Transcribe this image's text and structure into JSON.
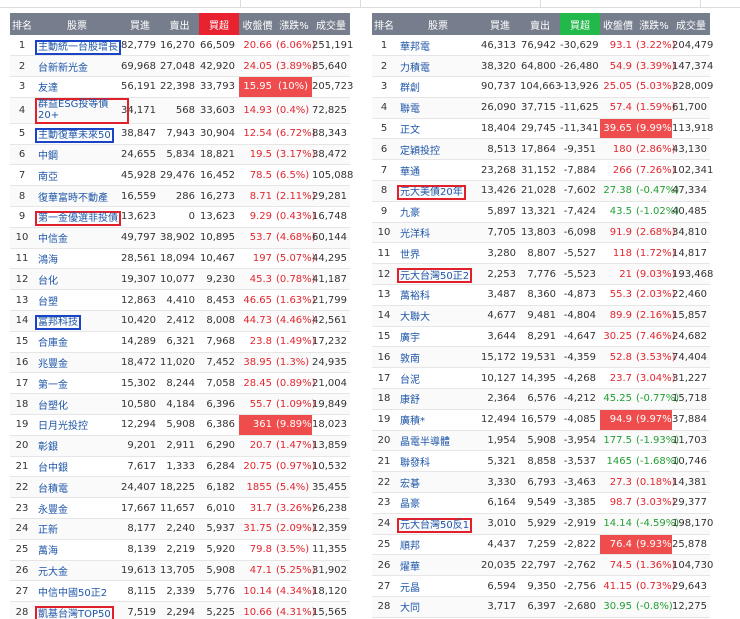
{
  "headers": [
    "排名",
    "股票",
    "買進",
    "賣出",
    "買超",
    "收盤價",
    "漲跌%",
    "成交量"
  ],
  "left_rows": [
    {
      "rank": "1",
      "name": "主動統一台股增長",
      "buy": "82,779",
      "sell": "16,270",
      "net": "66,509",
      "close": "20.66",
      "chg": "(6.06%)",
      "vol": "251,191",
      "box": "blue"
    },
    {
      "rank": "2",
      "name": "台新新光金",
      "buy": "69,968",
      "sell": "27,048",
      "net": "42,920",
      "close": "24.05",
      "chg": "(3.89%)",
      "vol": "85,640"
    },
    {
      "rank": "3",
      "name": "友達",
      "buy": "56,191",
      "sell": "22,398",
      "net": "33,793",
      "close": "15.95",
      "chg": "(10%)",
      "vol": "205,723",
      "limit": true
    },
    {
      "rank": "4",
      "name": "群益ESG投等債20+",
      "buy": "34,171",
      "sell": "568",
      "net": "33,603",
      "close": "14.93",
      "chg": "(0.4%)",
      "vol": "72,825",
      "box": "red",
      "wrap": true
    },
    {
      "rank": "5",
      "name": "主動復華未來50",
      "buy": "38,847",
      "sell": "7,943",
      "net": "30,904",
      "close": "12.54",
      "chg": "(6.72%)",
      "vol": "88,343",
      "box": "blue"
    },
    {
      "rank": "6",
      "name": "中鋼",
      "buy": "24,655",
      "sell": "5,834",
      "net": "18,821",
      "close": "19.5",
      "chg": "(3.17%)",
      "vol": "38,472"
    },
    {
      "rank": "7",
      "name": "南亞",
      "buy": "45,928",
      "sell": "29,476",
      "net": "16,452",
      "close": "78.5",
      "chg": "(6.5%)",
      "vol": "105,088"
    },
    {
      "rank": "8",
      "name": "復華富時不動產",
      "buy": "16,559",
      "sell": "286",
      "net": "16,273",
      "close": "8.71",
      "chg": "(2.11%)",
      "vol": "29,281"
    },
    {
      "rank": "9",
      "name": "第一金優選非投債",
      "buy": "13,623",
      "sell": "0",
      "net": "13,623",
      "close": "9.29",
      "chg": "(0.43%)",
      "vol": "16,748",
      "box": "red"
    },
    {
      "rank": "10",
      "name": "中信金",
      "buy": "49,797",
      "sell": "38,902",
      "net": "10,895",
      "close": "53.7",
      "chg": "(4.68%)",
      "vol": "60,144"
    },
    {
      "rank": "11",
      "name": "鴻海",
      "buy": "28,561",
      "sell": "18,094",
      "net": "10,467",
      "close": "197",
      "chg": "(5.07%)",
      "vol": "44,295"
    },
    {
      "rank": "12",
      "name": "台化",
      "buy": "19,307",
      "sell": "10,077",
      "net": "9,230",
      "close": "45.3",
      "chg": "(0.78%)",
      "vol": "41,187"
    },
    {
      "rank": "13",
      "name": "台塑",
      "buy": "12,863",
      "sell": "4,410",
      "net": "8,453",
      "close": "46.65",
      "chg": "(1.63%)",
      "vol": "21,799"
    },
    {
      "rank": "14",
      "name": "富邦科技",
      "buy": "10,420",
      "sell": "2,412",
      "net": "8,008",
      "close": "44.73",
      "chg": "(4.46%)",
      "vol": "42,561",
      "box": "blue"
    },
    {
      "rank": "15",
      "name": "合庫金",
      "buy": "14,289",
      "sell": "6,321",
      "net": "7,968",
      "close": "23.8",
      "chg": "(1.49%)",
      "vol": "17,232"
    },
    {
      "rank": "16",
      "name": "兆豐金",
      "buy": "18,472",
      "sell": "11,020",
      "net": "7,452",
      "close": "38.95",
      "chg": "(1.3%)",
      "vol": "24,935"
    },
    {
      "rank": "17",
      "name": "第一金",
      "buy": "15,302",
      "sell": "8,244",
      "net": "7,058",
      "close": "28.45",
      "chg": "(0.89%)",
      "vol": "21,004"
    },
    {
      "rank": "18",
      "name": "台塑化",
      "buy": "10,580",
      "sell": "4,184",
      "net": "6,396",
      "close": "55.7",
      "chg": "(1.09%)",
      "vol": "19,849"
    },
    {
      "rank": "19",
      "name": "日月光投控",
      "buy": "12,294",
      "sell": "5,908",
      "net": "6,386",
      "close": "361",
      "chg": "(9.89%)",
      "vol": "18,023",
      "limit": true
    },
    {
      "rank": "20",
      "name": "彰銀",
      "buy": "9,201",
      "sell": "2,911",
      "net": "6,290",
      "close": "20.7",
      "chg": "(1.47%)",
      "vol": "13,859"
    },
    {
      "rank": "21",
      "name": "台中銀",
      "buy": "7,617",
      "sell": "1,333",
      "net": "6,284",
      "close": "20.75",
      "chg": "(0.97%)",
      "vol": "10,532"
    },
    {
      "rank": "22",
      "name": "台積電",
      "buy": "24,407",
      "sell": "18,225",
      "net": "6,182",
      "close": "1855",
      "chg": "(5.4%)",
      "vol": "35,455"
    },
    {
      "rank": "23",
      "name": "永豐金",
      "buy": "17,667",
      "sell": "11,657",
      "net": "6,010",
      "close": "31.7",
      "chg": "(3.26%)",
      "vol": "26,238"
    },
    {
      "rank": "24",
      "name": "正新",
      "buy": "8,177",
      "sell": "2,240",
      "net": "5,937",
      "close": "31.75",
      "chg": "(2.09%)",
      "vol": "12,359"
    },
    {
      "rank": "25",
      "name": "萬海",
      "buy": "8,139",
      "sell": "2,219",
      "net": "5,920",
      "close": "79.8",
      "chg": "(3.5%)",
      "vol": "11,355"
    },
    {
      "rank": "26",
      "name": "元大金",
      "buy": "19,613",
      "sell": "13,705",
      "net": "5,908",
      "close": "47.1",
      "chg": "(5.25%)",
      "vol": "31,902"
    },
    {
      "rank": "27",
      "name": "中信中國50正2",
      "buy": "8,115",
      "sell": "2,339",
      "net": "5,776",
      "close": "10.14",
      "chg": "(4.34%)",
      "vol": "18,120"
    },
    {
      "rank": "28",
      "name": "凱基台灣TOP50",
      "buy": "7,519",
      "sell": "2,294",
      "net": "5,225",
      "close": "10.66",
      "chg": "(4.31%)",
      "vol": "15,565",
      "box": "red"
    }
  ],
  "right_rows": [
    {
      "rank": "1",
      "name": "華邦電",
      "buy": "46,313",
      "sell": "76,942",
      "net": "-30,629",
      "close": "93.1",
      "chg": "(3.22%)",
      "vol": "204,479"
    },
    {
      "rank": "2",
      "name": "力積電",
      "buy": "38,320",
      "sell": "64,800",
      "net": "-26,480",
      "close": "54.9",
      "chg": "(3.39%)",
      "vol": "147,374"
    },
    {
      "rank": "3",
      "name": "群創",
      "buy": "90,737",
      "sell": "104,663",
      "net": "-13,926",
      "close": "25.05",
      "chg": "(5.03%)",
      "vol": "328,009"
    },
    {
      "rank": "4",
      "name": "聯電",
      "buy": "26,090",
      "sell": "37,715",
      "net": "-11,625",
      "close": "57.4",
      "chg": "(1.59%)",
      "vol": "61,700"
    },
    {
      "rank": "5",
      "name": "正文",
      "buy": "18,404",
      "sell": "29,745",
      "net": "-11,341",
      "close": "39.65",
      "chg": "(9.99%)",
      "vol": "113,918",
      "limit": true
    },
    {
      "rank": "6",
      "name": "定穎投控",
      "buy": "8,513",
      "sell": "17,864",
      "net": "-9,351",
      "close": "180",
      "chg": "(2.86%)",
      "vol": "43,130"
    },
    {
      "rank": "7",
      "name": "華通",
      "buy": "23,268",
      "sell": "31,152",
      "net": "-7,884",
      "close": "266",
      "chg": "(7.26%)",
      "vol": "102,341"
    },
    {
      "rank": "8",
      "name": "元大美債20年",
      "buy": "13,426",
      "sell": "21,028",
      "net": "-7,602",
      "close": "27.38",
      "chg": "(-0.47%)",
      "vol": "47,334",
      "box": "red",
      "down": true
    },
    {
      "rank": "9",
      "name": "九豪",
      "buy": "5,897",
      "sell": "13,321",
      "net": "-7,424",
      "close": "43.5",
      "chg": "(-1.02%)",
      "vol": "40,485",
      "down": true
    },
    {
      "rank": "10",
      "name": "光洋科",
      "buy": "7,705",
      "sell": "13,803",
      "net": "-6,098",
      "close": "91.9",
      "chg": "(2.68%)",
      "vol": "34,810"
    },
    {
      "rank": "11",
      "name": "世界",
      "buy": "3,280",
      "sell": "8,807",
      "net": "-5,527",
      "close": "118",
      "chg": "(1.72%)",
      "vol": "14,817"
    },
    {
      "rank": "12",
      "name": "元大台灣50正2",
      "buy": "2,253",
      "sell": "7,776",
      "net": "-5,523",
      "close": "21",
      "chg": "(9.03%)",
      "vol": "193,468",
      "box": "red"
    },
    {
      "rank": "13",
      "name": "萬裕科",
      "buy": "3,487",
      "sell": "8,360",
      "net": "-4,873",
      "close": "55.3",
      "chg": "(2.03%)",
      "vol": "22,460"
    },
    {
      "rank": "14",
      "name": "大聯大",
      "buy": "4,677",
      "sell": "9,481",
      "net": "-4,804",
      "close": "89.9",
      "chg": "(2.16%)",
      "vol": "15,857"
    },
    {
      "rank": "15",
      "name": "廣宇",
      "buy": "3,644",
      "sell": "8,291",
      "net": "-4,647",
      "close": "30.25",
      "chg": "(7.46%)",
      "vol": "24,682"
    },
    {
      "rank": "16",
      "name": "敦南",
      "buy": "15,172",
      "sell": "19,531",
      "net": "-4,359",
      "close": "52.8",
      "chg": "(3.53%)",
      "vol": "74,404"
    },
    {
      "rank": "17",
      "name": "台泥",
      "buy": "10,127",
      "sell": "14,395",
      "net": "-4,268",
      "close": "23.7",
      "chg": "(3.04%)",
      "vol": "31,227"
    },
    {
      "rank": "18",
      "name": "康舒",
      "buy": "2,364",
      "sell": "6,576",
      "net": "-4,212",
      "close": "45.25",
      "chg": "(-0.77%)",
      "vol": "15,718",
      "down": true
    },
    {
      "rank": "19",
      "name": "廣積*",
      "buy": "12,494",
      "sell": "16,579",
      "net": "-4,085",
      "close": "94.9",
      "chg": "(9.97%)",
      "vol": "37,884",
      "limit": true
    },
    {
      "rank": "20",
      "name": "晶電半導體",
      "buy": "1,954",
      "sell": "5,908",
      "net": "-3,954",
      "close": "177.5",
      "chg": "(-1.93%)",
      "vol": "11,703",
      "down": true
    },
    {
      "rank": "21",
      "name": "聯發科",
      "buy": "5,321",
      "sell": "8,858",
      "net": "-3,537",
      "close": "1465",
      "chg": "(-1.68%)",
      "vol": "10,746",
      "down": true
    },
    {
      "rank": "22",
      "name": "宏碁",
      "buy": "3,330",
      "sell": "6,793",
      "net": "-3,463",
      "close": "27.3",
      "chg": "(0.18%)",
      "vol": "14,381"
    },
    {
      "rank": "23",
      "name": "晶豪",
      "buy": "6,164",
      "sell": "9,549",
      "net": "-3,385",
      "close": "98.7",
      "chg": "(3.03%)",
      "vol": "29,377"
    },
    {
      "rank": "24",
      "name": "元大台灣50反1",
      "buy": "3,010",
      "sell": "5,929",
      "net": "-2,919",
      "close": "14.14",
      "chg": "(-4.59%)",
      "vol": "198,170",
      "box": "red",
      "down": true
    },
    {
      "rank": "25",
      "name": "順邦",
      "buy": "4,437",
      "sell": "7,259",
      "net": "-2,822",
      "close": "76.4",
      "chg": "(9.93%)",
      "vol": "25,878",
      "limit": true
    },
    {
      "rank": "26",
      "name": "燿華",
      "buy": "20,035",
      "sell": "22,797",
      "net": "-2,762",
      "close": "74.5",
      "chg": "(1.36%)",
      "vol": "104,730"
    },
    {
      "rank": "27",
      "name": "元晶",
      "buy": "6,594",
      "sell": "9,350",
      "net": "-2,756",
      "close": "41.15",
      "chg": "(0.73%)",
      "vol": "29,643"
    },
    {
      "rank": "28",
      "name": "大同",
      "buy": "3,717",
      "sell": "6,397",
      "net": "-2,680",
      "close": "30.95",
      "chg": "(-0.8%)",
      "vol": "12,275",
      "down": true
    }
  ]
}
